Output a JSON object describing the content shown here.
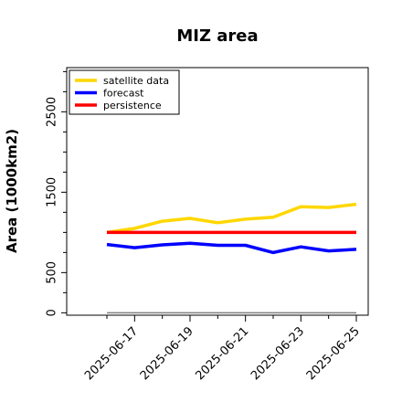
{
  "chart_data": {
    "type": "line",
    "title": "MIZ area",
    "xlabel": "",
    "ylabel": "Area (1000km2)",
    "x": [
      "2025-06-16",
      "2025-06-17",
      "2025-06-18",
      "2025-06-19",
      "2025-06-20",
      "2025-06-21",
      "2025-06-22",
      "2025-06-23",
      "2025-06-24",
      "2025-06-25"
    ],
    "x_ticks": [
      "2025-06-17",
      "2025-06-19",
      "2025-06-21",
      "2025-06-23",
      "2025-06-25"
    ],
    "x_tick_colors": [
      "#228B22",
      "#000000",
      "#000000",
      "#000000",
      "#000000"
    ],
    "y_ticks": [
      0,
      500,
      1500,
      2500
    ],
    "ylim": [
      -30,
      3050
    ],
    "grid": false,
    "legend_position": "top-left",
    "series": [
      {
        "name": "satellite data",
        "color": "#FFD700",
        "values": [
          1000,
          1050,
          1140,
          1175,
          1120,
          1165,
          1190,
          1320,
          1310,
          1350
        ]
      },
      {
        "name": "forecast",
        "color": "#0000FF",
        "values": [
          850,
          810,
          845,
          865,
          840,
          840,
          750,
          820,
          770,
          790
        ]
      },
      {
        "name": "persistence",
        "color": "#FF0000",
        "values": [
          1000,
          1000,
          1000,
          1000,
          1000,
          1000,
          1000,
          1000,
          1000,
          1000
        ]
      }
    ],
    "reference_line": {
      "value": 0,
      "color": "#808080"
    }
  }
}
